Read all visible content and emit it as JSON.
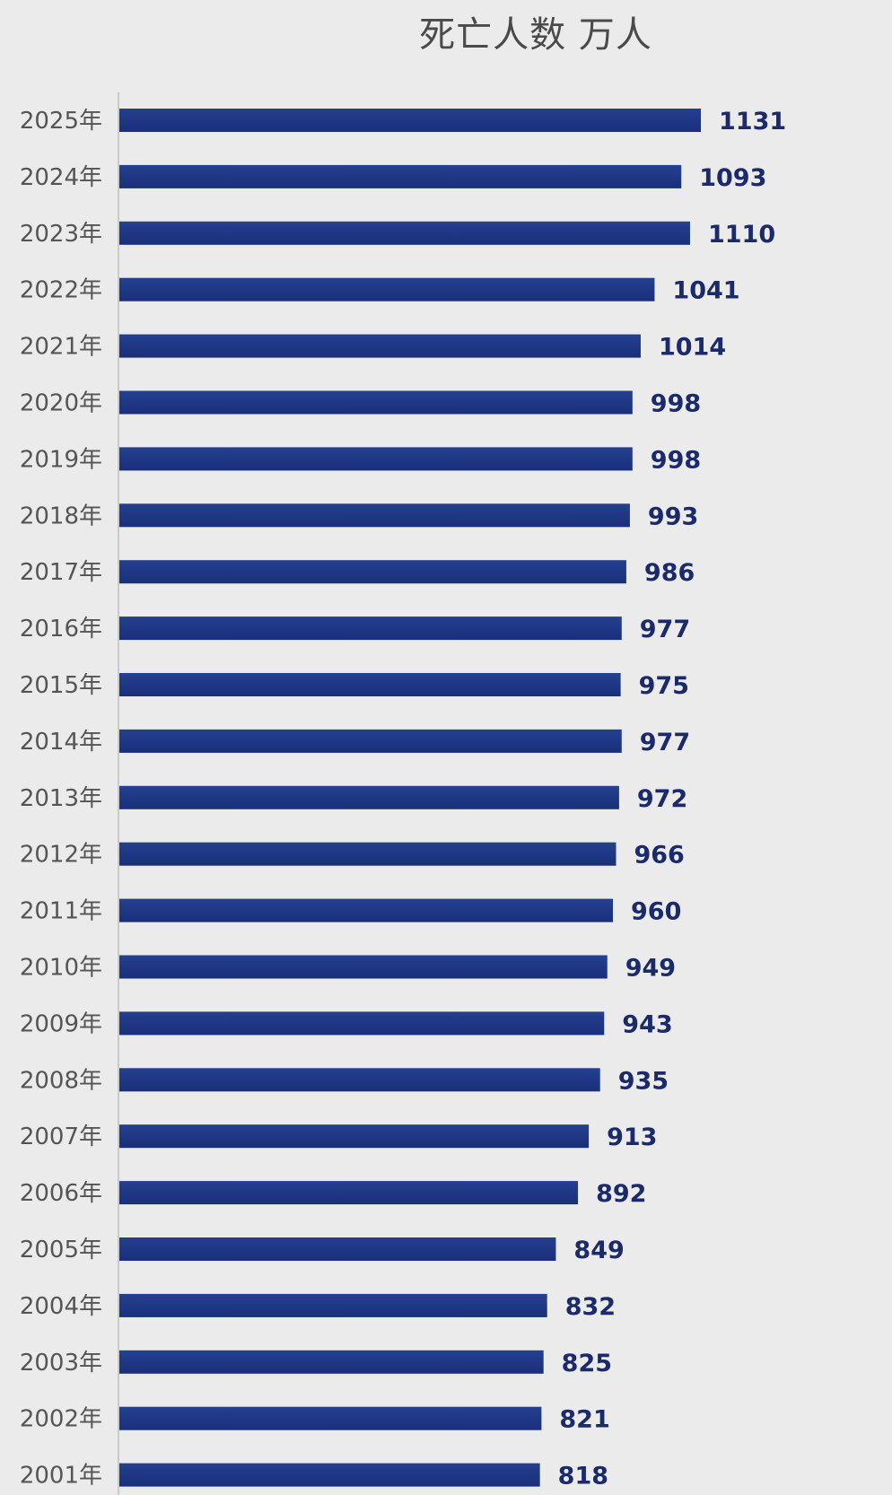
{
  "chart_data": {
    "type": "bar",
    "orientation": "horizontal",
    "title": "死亡人数 万人",
    "categories": [
      "2025年",
      "2024年",
      "2023年",
      "2022年",
      "2021年",
      "2020年",
      "2019年",
      "2018年",
      "2017年",
      "2016年",
      "2015年",
      "2014年",
      "2013年",
      "2012年",
      "2011年",
      "2010年",
      "2009年",
      "2008年",
      "2007年",
      "2006年",
      "2005年",
      "2004年",
      "2003年",
      "2002年",
      "2001年"
    ],
    "values": [
      1131,
      1093,
      1110,
      1041,
      1014,
      998,
      998,
      993,
      986,
      977,
      975,
      977,
      972,
      966,
      960,
      949,
      943,
      935,
      913,
      892,
      849,
      832,
      825,
      821,
      818
    ],
    "xlim": [
      0,
      1131
    ],
    "grid": false,
    "legend": "none",
    "colors": {
      "bar": "#1a2f7a",
      "bar_light": "#24408f",
      "label": "#1b2a6b",
      "tick": "#555555",
      "axis": "#bfbfbf",
      "background": "#ebebeb"
    }
  }
}
